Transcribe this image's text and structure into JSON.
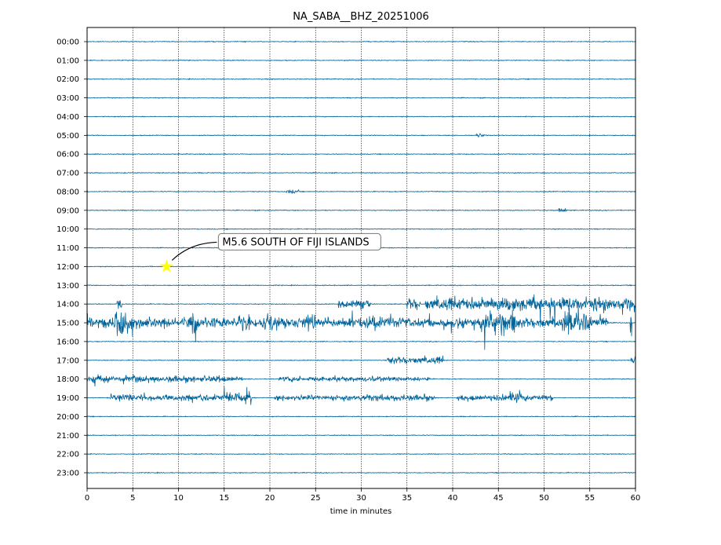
{
  "chart_data": {
    "type": "line",
    "title": "NA_SABA__BHZ_20251006",
    "xlabel": "time in minutes",
    "ylabel": "",
    "xlim": [
      0,
      60
    ],
    "xticks": [
      0,
      5,
      10,
      15,
      20,
      25,
      30,
      35,
      40,
      45,
      50,
      55,
      60
    ],
    "row_labels": [
      "00:00",
      "01:00",
      "02:00",
      "03:00",
      "04:00",
      "05:00",
      "06:00",
      "07:00",
      "08:00",
      "09:00",
      "10:00",
      "11:00",
      "12:00",
      "13:00",
      "14:00",
      "15:00",
      "16:00",
      "17:00",
      "18:00",
      "19:00",
      "20:00",
      "21:00",
      "22:00",
      "23:00"
    ],
    "grid": "vertical dotted",
    "trace_color": "#00649a",
    "activity": [
      {
        "row": "05:00",
        "bursts": [
          [
            42.5,
            43.5,
            0.15
          ]
        ]
      },
      {
        "row": "08:00",
        "bursts": [
          [
            21.8,
            23.2,
            0.12
          ]
        ]
      },
      {
        "row": "09:00",
        "bursts": [
          [
            51.5,
            52.5,
            0.12
          ]
        ]
      },
      {
        "row": "14:00",
        "bursts": [
          [
            3.3,
            3.8,
            0.6
          ],
          [
            27.5,
            31,
            0.3
          ],
          [
            35,
            36.5,
            0.4
          ],
          [
            37,
            60,
            0.45
          ],
          [
            55.5,
            55.8,
            1.0
          ]
        ]
      },
      {
        "row": "15:00",
        "bursts": [
          [
            0,
            57,
            0.35
          ],
          [
            3,
            5,
            0.9
          ],
          [
            11.5,
            12.5,
            0.6
          ],
          [
            16.5,
            18,
            0.7
          ],
          [
            19.5,
            21,
            0.7
          ],
          [
            24,
            25,
            0.7
          ],
          [
            30.5,
            31.5,
            0.6
          ],
          [
            43,
            47,
            0.8
          ],
          [
            52,
            55,
            0.8
          ],
          [
            59.3,
            59.6,
            0.9
          ]
        ]
      },
      {
        "row": "17:00",
        "bursts": [
          [
            32.8,
            39,
            0.25
          ],
          [
            59.5,
            60,
            0.3
          ]
        ]
      },
      {
        "row": "18:00",
        "bursts": [
          [
            0,
            17,
            0.22
          ],
          [
            0.5,
            1.5,
            0.5
          ],
          [
            21,
            37.5,
            0.18
          ]
        ]
      },
      {
        "row": "19:00",
        "bursts": [
          [
            2.5,
            18,
            0.22
          ],
          [
            15,
            18,
            0.45
          ],
          [
            20.5,
            38,
            0.2
          ],
          [
            40.5,
            51,
            0.22
          ],
          [
            46,
            47.5,
            0.5
          ]
        ]
      }
    ],
    "events": [
      {
        "label": "M5.6 SOUTH OF FIJI ISLANDS",
        "row": "12:00",
        "minute": 8.7,
        "marker": "star",
        "marker_color": "#ffff00"
      }
    ]
  }
}
